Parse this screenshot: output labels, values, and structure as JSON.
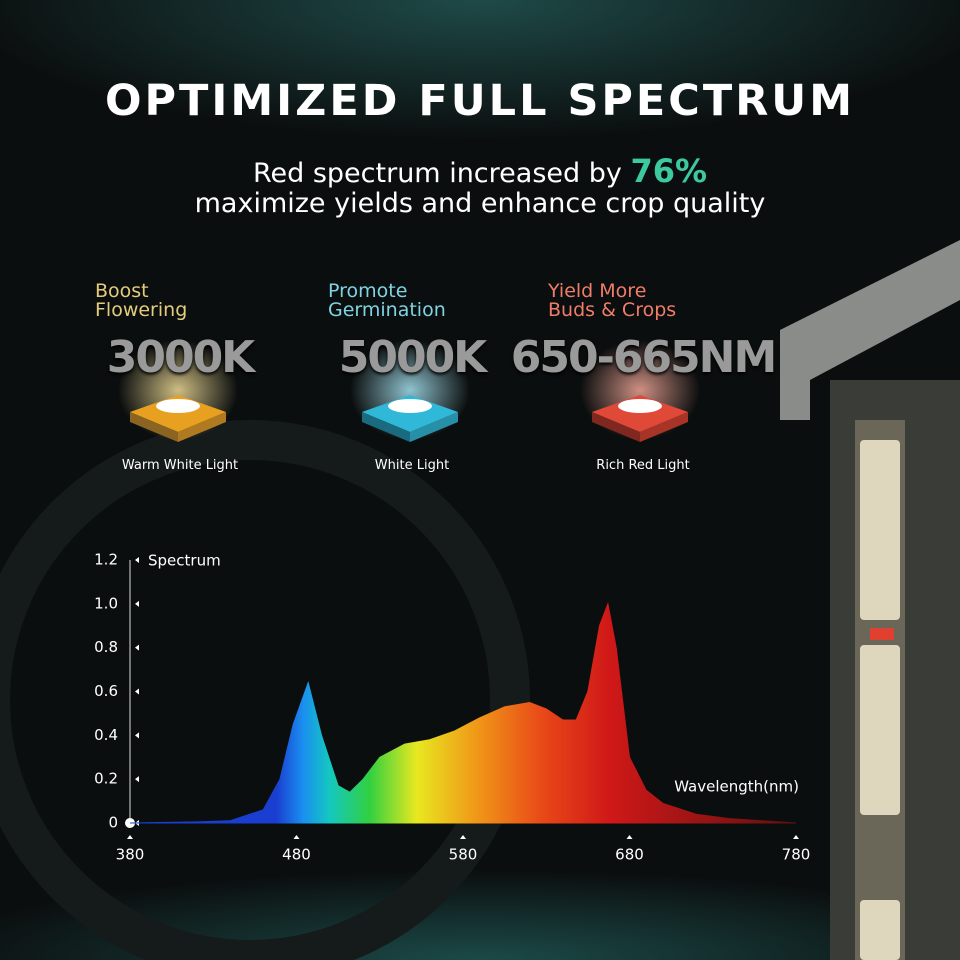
{
  "header": {
    "title": "OPTIMIZED FULL SPECTRUM",
    "subtitle_start": "Red spectrum increased by",
    "subtitle_highlight": "76%",
    "subtitle_line2": "maximize yields and enhance crop quality"
  },
  "features": [
    {
      "heading": [
        "Boost",
        "Flowering"
      ],
      "value": "3000K",
      "caption": "Warm White Light",
      "color": "#e3cd7c"
    },
    {
      "heading": [
        "Promote",
        "Germination"
      ],
      "value": "5000K",
      "caption": "White Light",
      "color": "#7fd3e3"
    },
    {
      "heading": [
        "Yield More",
        "Buds & Crops"
      ],
      "value": "650-665NM",
      "caption": "Rich Red Light",
      "color": "#f07c6a"
    }
  ],
  "chart_data": {
    "type": "area",
    "y_label": "Spectrum",
    "x_label": "Wavelength(nm)",
    "x": [
      380,
      420,
      440,
      460,
      470,
      478,
      487,
      495,
      505,
      512,
      520,
      530,
      545,
      560,
      575,
      590,
      605,
      620,
      630,
      640,
      648,
      655,
      662,
      667,
      672,
      680,
      690,
      700,
      720,
      740,
      760,
      780
    ],
    "values": [
      0,
      0.005,
      0.01,
      0.06,
      0.2,
      0.45,
      0.64,
      0.4,
      0.17,
      0.14,
      0.2,
      0.3,
      0.36,
      0.38,
      0.42,
      0.48,
      0.53,
      0.55,
      0.52,
      0.47,
      0.47,
      0.6,
      0.9,
      1.0,
      0.8,
      0.3,
      0.15,
      0.09,
      0.04,
      0.02,
      0.01,
      0
    ],
    "xlim": [
      380,
      780
    ],
    "ylim": [
      0,
      1.2
    ],
    "xticks": [
      380,
      480,
      580,
      680,
      780
    ],
    "yticks": [
      0,
      0.2,
      0.4,
      0.6,
      0.8,
      {
        "value": 1,
        "label": "1.0"
      },
      1.2
    ]
  }
}
